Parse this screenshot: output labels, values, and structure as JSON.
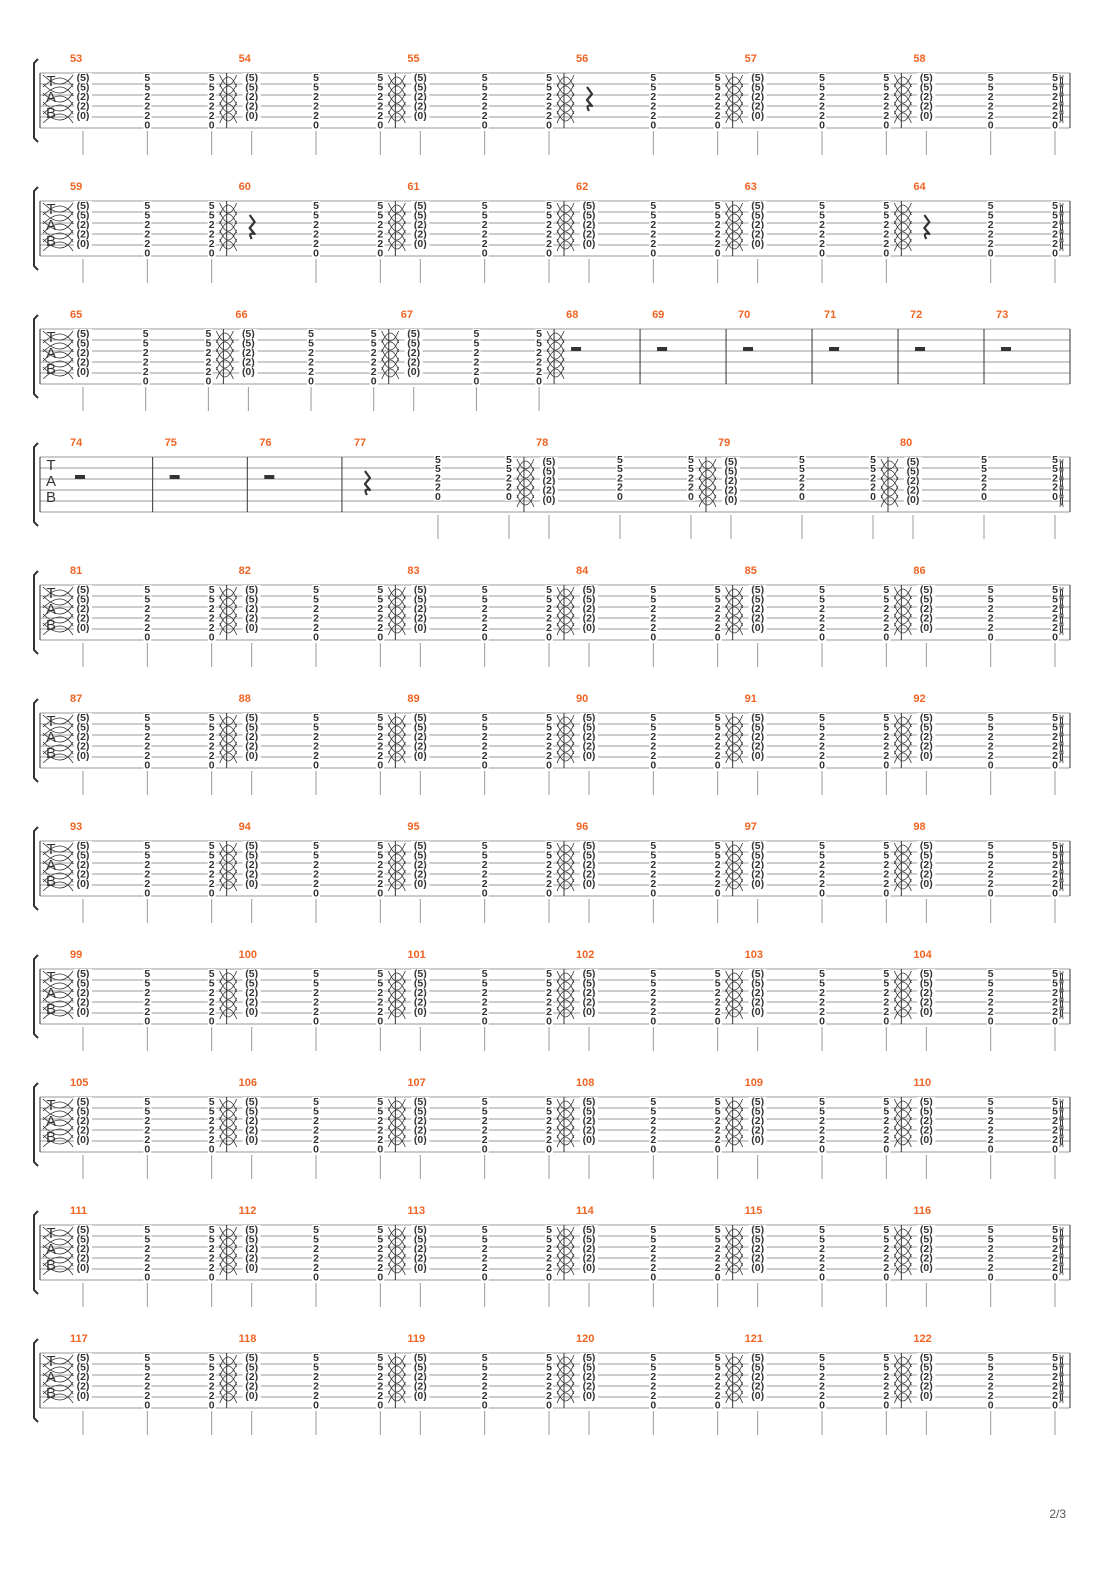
{
  "page": {
    "number_label": "2/3"
  },
  "colors": {
    "ink": "#333333",
    "measure_number": "#f06423",
    "line": "#999999"
  },
  "tab_clef": [
    "T",
    "A",
    "B"
  ],
  "chord_variants": {
    "paren": [
      "(5)",
      "(5)",
      "(2)",
      "(2)",
      "(0)"
    ],
    "c6": [
      "5",
      "5",
      "2",
      "2",
      "2",
      "0"
    ],
    "c5": [
      "5",
      "5",
      "2",
      "2",
      "0"
    ]
  },
  "systems": [
    {
      "measures": [
        {
          "number": "53",
          "beats": [
            "paren",
            "c6",
            "c6"
          ]
        },
        {
          "number": "54",
          "beats": [
            "paren",
            "c6",
            "c6"
          ]
        },
        {
          "number": "55",
          "beats": [
            "paren",
            "c6",
            "c6"
          ]
        },
        {
          "number": "56",
          "beats": [
            "rest",
            "c6",
            "c6"
          ]
        },
        {
          "number": "57",
          "beats": [
            "paren",
            "c6",
            "c6"
          ]
        },
        {
          "number": "58",
          "beats": [
            "paren",
            "c6",
            "c6"
          ]
        }
      ]
    },
    {
      "measures": [
        {
          "number": "59",
          "beats": [
            "paren",
            "c6",
            "c6"
          ]
        },
        {
          "number": "60",
          "beats": [
            "rest",
            "c6",
            "c6"
          ]
        },
        {
          "number": "61",
          "beats": [
            "paren",
            "c6",
            "c6"
          ]
        },
        {
          "number": "62",
          "beats": [
            "paren",
            "c6",
            "c6"
          ]
        },
        {
          "number": "63",
          "beats": [
            "paren",
            "c6",
            "c6"
          ]
        },
        {
          "number": "64",
          "beats": [
            "rest",
            "c6",
            "c6"
          ]
        }
      ]
    },
    {
      "measures": [
        {
          "number": "65",
          "beats": [
            "paren",
            "c6",
            "c6"
          ]
        },
        {
          "number": "66",
          "beats": [
            "paren",
            "c6",
            "c6"
          ]
        },
        {
          "number": "67",
          "beats": [
            "paren",
            "c6",
            "c6"
          ]
        },
        {
          "number": "68",
          "beats": [
            "halfrest"
          ]
        },
        {
          "number": "69",
          "beats": [
            "halfrest"
          ]
        },
        {
          "number": "70",
          "beats": [
            "halfrest"
          ]
        },
        {
          "number": "71",
          "beats": [
            "halfrest"
          ]
        },
        {
          "number": "72",
          "beats": [
            "halfrest"
          ]
        },
        {
          "number": "73",
          "beats": [
            "halfrest"
          ]
        }
      ]
    },
    {
      "measures": [
        {
          "number": "74",
          "beats": [
            "halfrest"
          ]
        },
        {
          "number": "75",
          "beats": [
            "halfrest"
          ]
        },
        {
          "number": "76",
          "beats": [
            "halfrest"
          ]
        },
        {
          "number": "77",
          "beats": [
            "rest",
            "c5",
            "c5"
          ]
        },
        {
          "number": "78",
          "beats": [
            "paren",
            "c5",
            "c5"
          ]
        },
        {
          "number": "79",
          "beats": [
            "paren",
            "c5",
            "c5"
          ]
        },
        {
          "number": "80",
          "beats": [
            "paren",
            "c5",
            "c5"
          ]
        }
      ]
    },
    {
      "measures": [
        {
          "number": "81",
          "beats": [
            "paren",
            "c6",
            "c6"
          ]
        },
        {
          "number": "82",
          "beats": [
            "paren",
            "c6",
            "c6"
          ]
        },
        {
          "number": "83",
          "beats": [
            "paren",
            "c6",
            "c6"
          ]
        },
        {
          "number": "84",
          "beats": [
            "paren",
            "c6",
            "c6"
          ]
        },
        {
          "number": "85",
          "beats": [
            "paren",
            "c6",
            "c6"
          ]
        },
        {
          "number": "86",
          "beats": [
            "paren",
            "c6",
            "c6"
          ]
        }
      ]
    },
    {
      "measures": [
        {
          "number": "87",
          "beats": [
            "paren",
            "c6",
            "c6"
          ]
        },
        {
          "number": "88",
          "beats": [
            "paren",
            "c6",
            "c6"
          ]
        },
        {
          "number": "89",
          "beats": [
            "paren",
            "c6",
            "c6"
          ]
        },
        {
          "number": "90",
          "beats": [
            "paren",
            "c6",
            "c6"
          ]
        },
        {
          "number": "91",
          "beats": [
            "paren",
            "c6",
            "c6"
          ]
        },
        {
          "number": "92",
          "beats": [
            "paren",
            "c6",
            "c6"
          ]
        }
      ]
    },
    {
      "measures": [
        {
          "number": "93",
          "beats": [
            "paren",
            "c6",
            "c6"
          ]
        },
        {
          "number": "94",
          "beats": [
            "paren",
            "c6",
            "c6"
          ]
        },
        {
          "number": "95",
          "beats": [
            "paren",
            "c6",
            "c6"
          ]
        },
        {
          "number": "96",
          "beats": [
            "paren",
            "c6",
            "c6"
          ]
        },
        {
          "number": "97",
          "beats": [
            "paren",
            "c6",
            "c6"
          ]
        },
        {
          "number": "98",
          "beats": [
            "paren",
            "c6",
            "c6"
          ]
        }
      ]
    },
    {
      "measures": [
        {
          "number": "99",
          "beats": [
            "paren",
            "c6",
            "c6"
          ]
        },
        {
          "number": "100",
          "beats": [
            "paren",
            "c6",
            "c6"
          ]
        },
        {
          "number": "101",
          "beats": [
            "paren",
            "c6",
            "c6"
          ]
        },
        {
          "number": "102",
          "beats": [
            "paren",
            "c6",
            "c6"
          ]
        },
        {
          "number": "103",
          "beats": [
            "paren",
            "c6",
            "c6"
          ]
        },
        {
          "number": "104",
          "beats": [
            "paren",
            "c6",
            "c6"
          ]
        }
      ]
    },
    {
      "measures": [
        {
          "number": "105",
          "beats": [
            "paren",
            "c6",
            "c6"
          ]
        },
        {
          "number": "106",
          "beats": [
            "paren",
            "c6",
            "c6"
          ]
        },
        {
          "number": "107",
          "beats": [
            "paren",
            "c6",
            "c6"
          ]
        },
        {
          "number": "108",
          "beats": [
            "paren",
            "c6",
            "c6"
          ]
        },
        {
          "number": "109",
          "beats": [
            "paren",
            "c6",
            "c6"
          ]
        },
        {
          "number": "110",
          "beats": [
            "paren",
            "c6",
            "c6"
          ]
        }
      ]
    },
    {
      "measures": [
        {
          "number": "111",
          "beats": [
            "paren",
            "c6",
            "c6"
          ]
        },
        {
          "number": "112",
          "beats": [
            "paren",
            "c6",
            "c6"
          ]
        },
        {
          "number": "113",
          "beats": [
            "paren",
            "c6",
            "c6"
          ]
        },
        {
          "number": "114",
          "beats": [
            "paren",
            "c6",
            "c6"
          ]
        },
        {
          "number": "115",
          "beats": [
            "paren",
            "c6",
            "c6"
          ]
        },
        {
          "number": "116",
          "beats": [
            "paren",
            "c6",
            "c6"
          ]
        }
      ]
    },
    {
      "measures": [
        {
          "number": "117",
          "beats": [
            "paren",
            "c6",
            "c6"
          ]
        },
        {
          "number": "118",
          "beats": [
            "paren",
            "c6",
            "c6"
          ]
        },
        {
          "number": "119",
          "beats": [
            "paren",
            "c6",
            "c6"
          ]
        },
        {
          "number": "120",
          "beats": [
            "paren",
            "c6",
            "c6"
          ]
        },
        {
          "number": "121",
          "beats": [
            "paren",
            "c6",
            "c6"
          ]
        },
        {
          "number": "122",
          "beats": [
            "paren",
            "c6",
            "c6"
          ]
        }
      ]
    }
  ]
}
